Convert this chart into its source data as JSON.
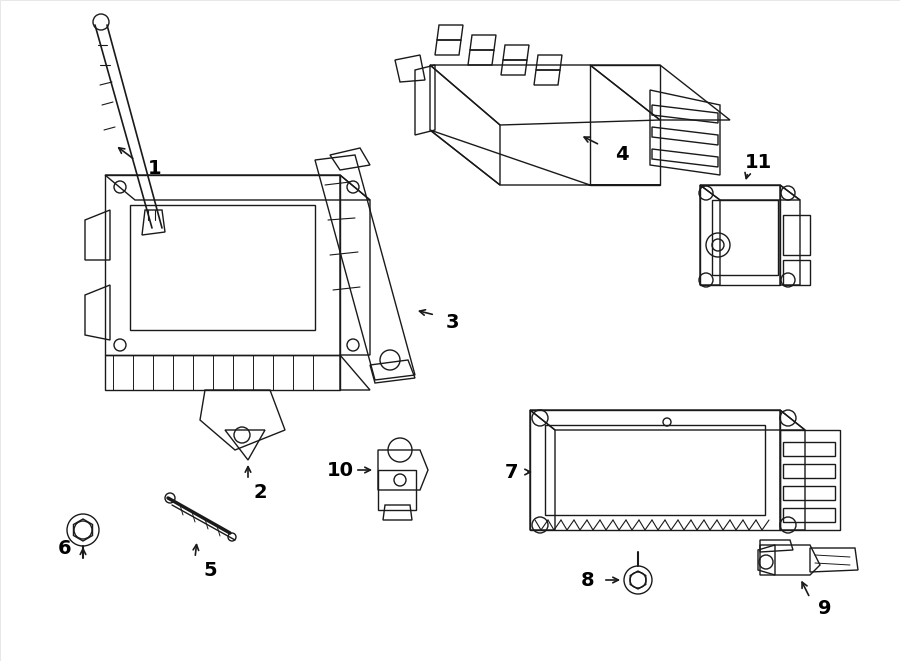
{
  "background_color": "#ffffff",
  "line_color": "#1a1a1a",
  "text_color": "#000000",
  "figsize": [
    9.0,
    6.61
  ],
  "dpi": 100,
  "lw": 1.0
}
